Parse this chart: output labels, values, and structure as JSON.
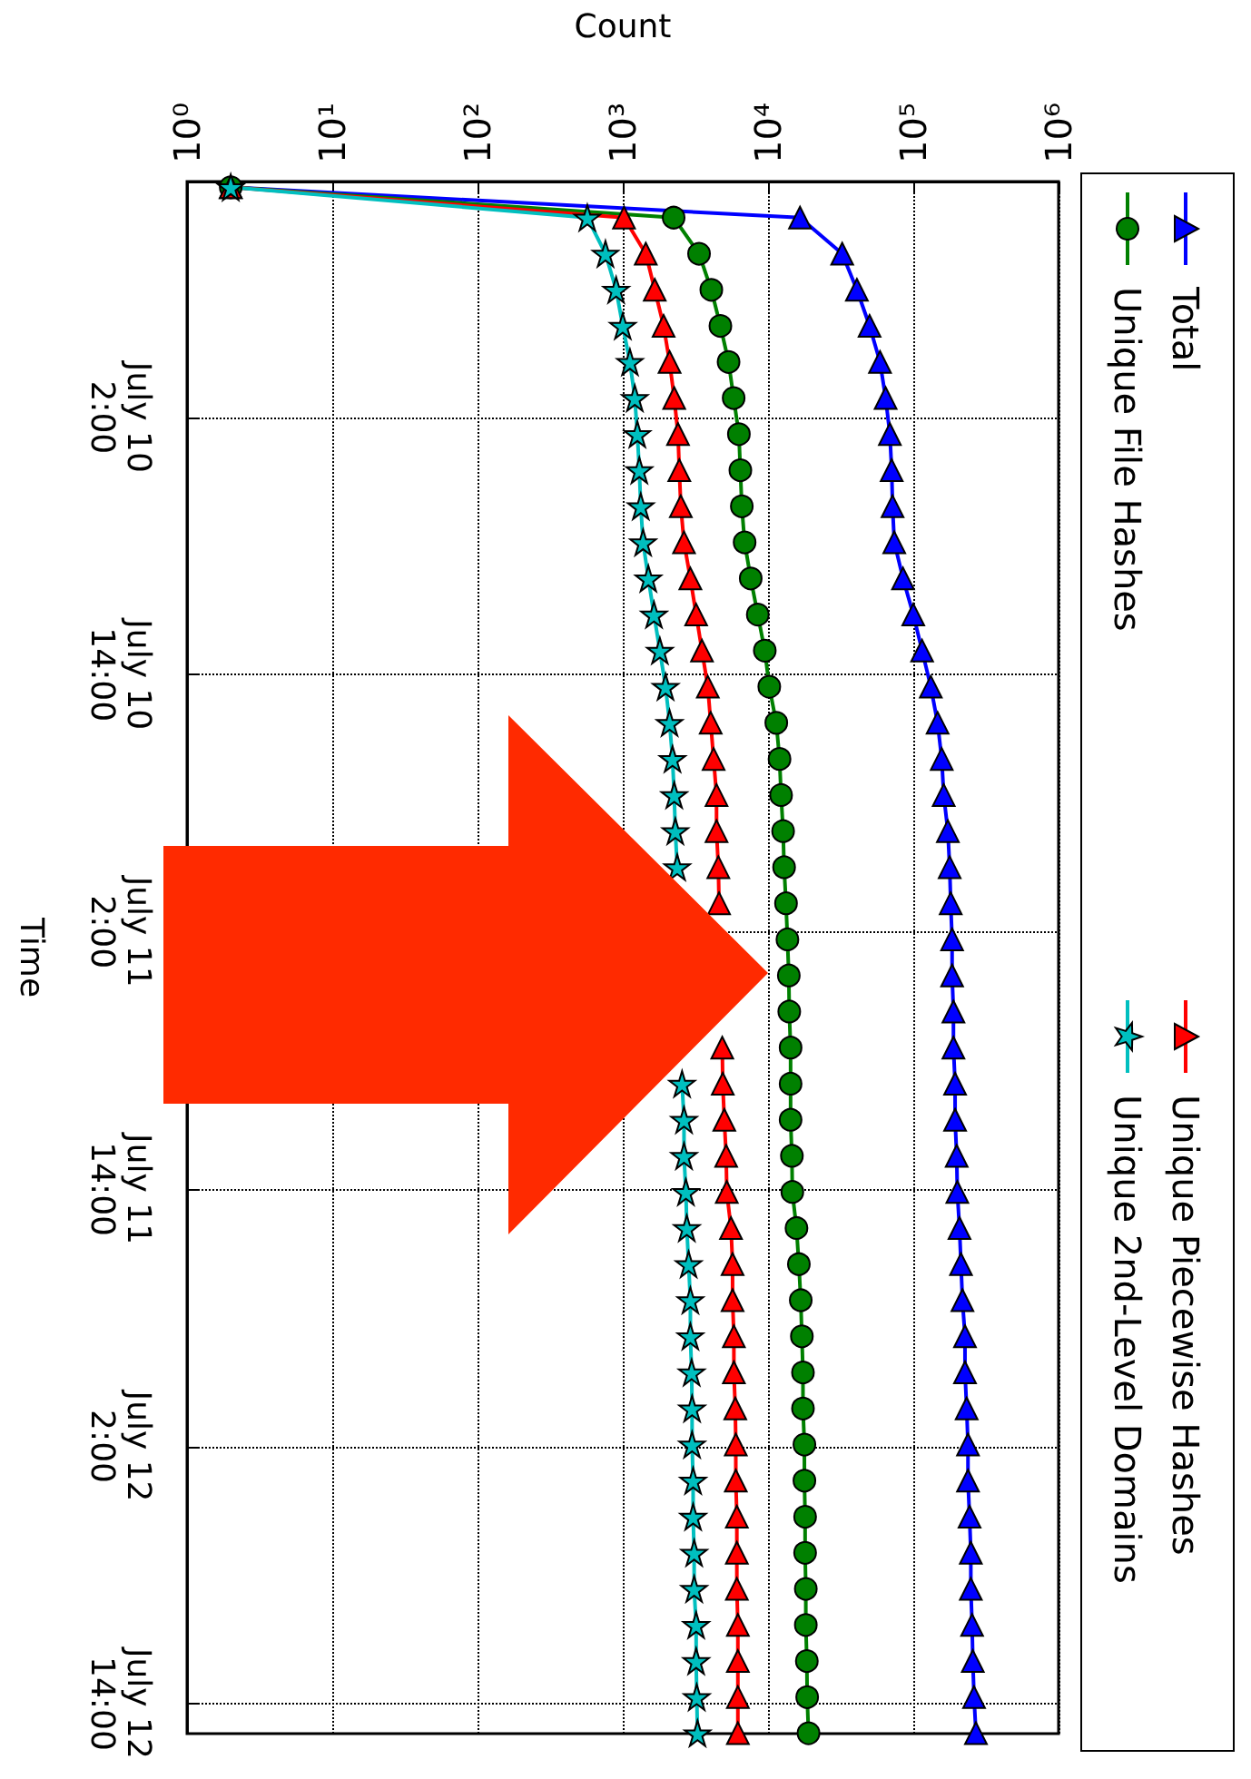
{
  "chart_data": {
    "type": "line",
    "orientation": "horizontal",
    "xlabel": "Count",
    "ylabel": "Time",
    "log": "x",
    "grid": true,
    "legend": "right",
    "xlim": [
      1,
      1000000
    ],
    "xticks": [
      {
        "value": 1,
        "label": "10⁰"
      },
      {
        "value": 10,
        "label": "10¹"
      },
      {
        "value": 100,
        "label": "10²"
      },
      {
        "value": 1000,
        "label": "10³"
      },
      {
        "value": 10000,
        "label": "10⁴"
      },
      {
        "value": 100000,
        "label": "10⁵"
      },
      {
        "value": 1000000,
        "label": "10⁶"
      }
    ],
    "ylim": [
      "--07-12T15:24",
      "--07-09T15:00"
    ],
    "yticks": [
      {
        "value": "--07-10T02:00",
        "label": "July 10\n2:00"
      },
      {
        "value": "--07-10T14:00",
        "label": "July 10\n14:00"
      },
      {
        "value": "--07-11T02:00",
        "label": "July 11\n2:00"
      },
      {
        "value": "--07-11T14:00",
        "label": "July 11\n14:00"
      },
      {
        "value": "--07-12T02:00",
        "label": "July 12\n2:00"
      },
      {
        "value": "--07-12T14:00",
        "label": "July 12\n14:00"
      }
    ],
    "x": [
      "--07-09T15:16",
      "--07-09T16:41",
      "--07-09T18:22",
      "--07-09T20:03",
      "--07-09T21:44",
      "--07-09T23:25",
      "--07-10T01:06",
      "--07-10T02:47",
      "--07-10T04:28",
      "--07-10T06:09",
      "--07-10T07:50",
      "--07-10T09:31",
      "--07-10T11:12",
      "--07-10T12:53",
      "--07-10T14:34",
      "--07-10T16:15",
      "--07-10T17:56",
      "--07-10T19:37",
      "--07-10T21:18",
      "--07-10T22:59",
      "--07-11T00:40",
      "--07-11T02:21",
      "--07-11T04:02",
      "--07-11T05:43",
      "--07-11T07:24",
      "--07-11T09:05",
      "--07-11T10:46",
      "--07-11T12:27",
      "--07-11T14:08",
      "--07-11T15:49",
      "--07-11T17:30",
      "--07-11T19:11",
      "--07-11T20:52",
      "--07-11T22:33",
      "--07-12T00:14",
      "--07-12T01:55",
      "--07-12T03:36",
      "--07-12T05:17",
      "--07-12T06:58",
      "--07-12T08:39",
      "--07-12T10:20",
      "--07-12T12:01",
      "--07-12T13:42",
      "--07-12T15:23"
    ],
    "series": [
      {
        "name": "Total",
        "color": "#0000ff",
        "marker": "triangle",
        "values": [
          2,
          16600,
          32400,
          40900,
          50000,
          59000,
          64500,
          69000,
          71000,
          72000,
          74000,
          85000,
          100000,
          115000,
          132000,
          147000,
          157000,
          162000,
          173000,
          178000,
          181000,
          185000,
          185000,
          189000,
          189000,
          194000,
          194000,
          199000,
          201000,
          208000,
          213000,
          218000,
          227000,
          227000,
          233000,
          238000,
          238000,
          244000,
          249000,
          249000,
          254000,
          257000,
          262000,
          270000
        ]
      },
      {
        "name": "Unique File Hashes",
        "color": "#008000",
        "marker": "circle",
        "values": [
          2,
          2240,
          3350,
          4070,
          4700,
          5350,
          5800,
          6300,
          6450,
          6600,
          6900,
          7600,
          8500,
          9500,
          10200,
          11400,
          12000,
          12300,
          12700,
          12900,
          13300,
          13600,
          13900,
          14000,
          14300,
          14300,
          14300,
          14600,
          14700,
          15700,
          16300,
          16800,
          17100,
          17400,
          17400,
          17800,
          17800,
          18000,
          18000,
          18200,
          18200,
          18500,
          18600,
          19000
        ]
      },
      {
        "name": "Unique Piecewise Hashes",
        "color": "#ff0000",
        "marker": "triangle",
        "values": [
          2,
          1020,
          1440,
          1660,
          1910,
          2100,
          2260,
          2400,
          2450,
          2510,
          2640,
          2920,
          3200,
          3510,
          3850,
          4030,
          4220,
          4420,
          4420,
          4550,
          4600,
          null,
          null,
          null,
          4840,
          4880,
          5000,
          5150,
          5200,
          5560,
          5700,
          5700,
          5820,
          5820,
          5950,
          6000,
          6000,
          6100,
          6100,
          6100,
          6200,
          6200,
          6200,
          6200
        ]
      },
      {
        "name": "Unique 2nd-Level Domains",
        "color": "#00bfbf",
        "marker": "star",
        "values": [
          2,
          570,
          760,
          900,
          1000,
          1120,
          1210,
          1260,
          1300,
          1330,
          1380,
          1500,
          1640,
          1800,
          1970,
          2100,
          2200,
          2260,
          2300,
          2370,
          null,
          null,
          null,
          null,
          null,
          2560,
          2640,
          2640,
          2720,
          2760,
          2840,
          2920,
          2920,
          2980,
          3000,
          3000,
          3050,
          3050,
          3100,
          3100,
          3200,
          3200,
          3230,
          3270
        ]
      }
    ]
  }
}
